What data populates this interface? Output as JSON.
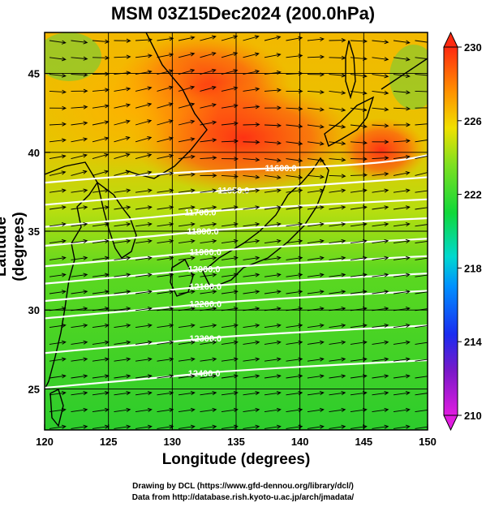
{
  "title": "MSM 03Z15Dec2024 (200.0hPa)",
  "xaxis": {
    "label": "Longitude (degrees)",
    "ticks": [
      "120",
      "125",
      "130",
      "135",
      "140",
      "145",
      "150"
    ],
    "range": [
      120,
      150
    ]
  },
  "yaxis": {
    "label": "Latitude  (degrees)",
    "ticks": [
      "25",
      "30",
      "35",
      "40",
      "45"
    ],
    "range": [
      22.4,
      47.6
    ]
  },
  "colorbar": {
    "ticks": [
      "230",
      "226",
      "222",
      "218",
      "214",
      "210"
    ],
    "range": [
      210,
      230
    ]
  },
  "contours": [
    {
      "label": "11600.0",
      "lon": 138.5,
      "lat": 39.0
    },
    {
      "label": "11650.0",
      "lon": 134.8,
      "lat": 37.6
    },
    {
      "label": "11700.0",
      "lon": 132.2,
      "lat": 36.2
    },
    {
      "label": "11800.0",
      "lon": 132.4,
      "lat": 35.0
    },
    {
      "label": "11900.0",
      "lon": 132.6,
      "lat": 33.7
    },
    {
      "label": "12000.0",
      "lon": 132.5,
      "lat": 32.6
    },
    {
      "label": "12100.0",
      "lon": 132.6,
      "lat": 31.5
    },
    {
      "label": "12200.0",
      "lon": 132.6,
      "lat": 30.4
    },
    {
      "label": "12300.0",
      "lon": 132.6,
      "lat": 28.2
    },
    {
      "label": "12400.0",
      "lon": 132.5,
      "lat": 26.0
    }
  ],
  "credits": {
    "line1": "Drawing by DCL (https://www.gfd-dennou.org/library/dcl/)",
    "line2": "Data from http://database.rish.kyoto-u.ac.jp/arch/jmadata/"
  },
  "colors": {
    "warm": "#ff3a1a",
    "mid": "#ffa300",
    "green": "#2fdc2a",
    "cool": "#00cccc",
    "blue": "#2040ff",
    "purple": "#e020c0"
  }
}
